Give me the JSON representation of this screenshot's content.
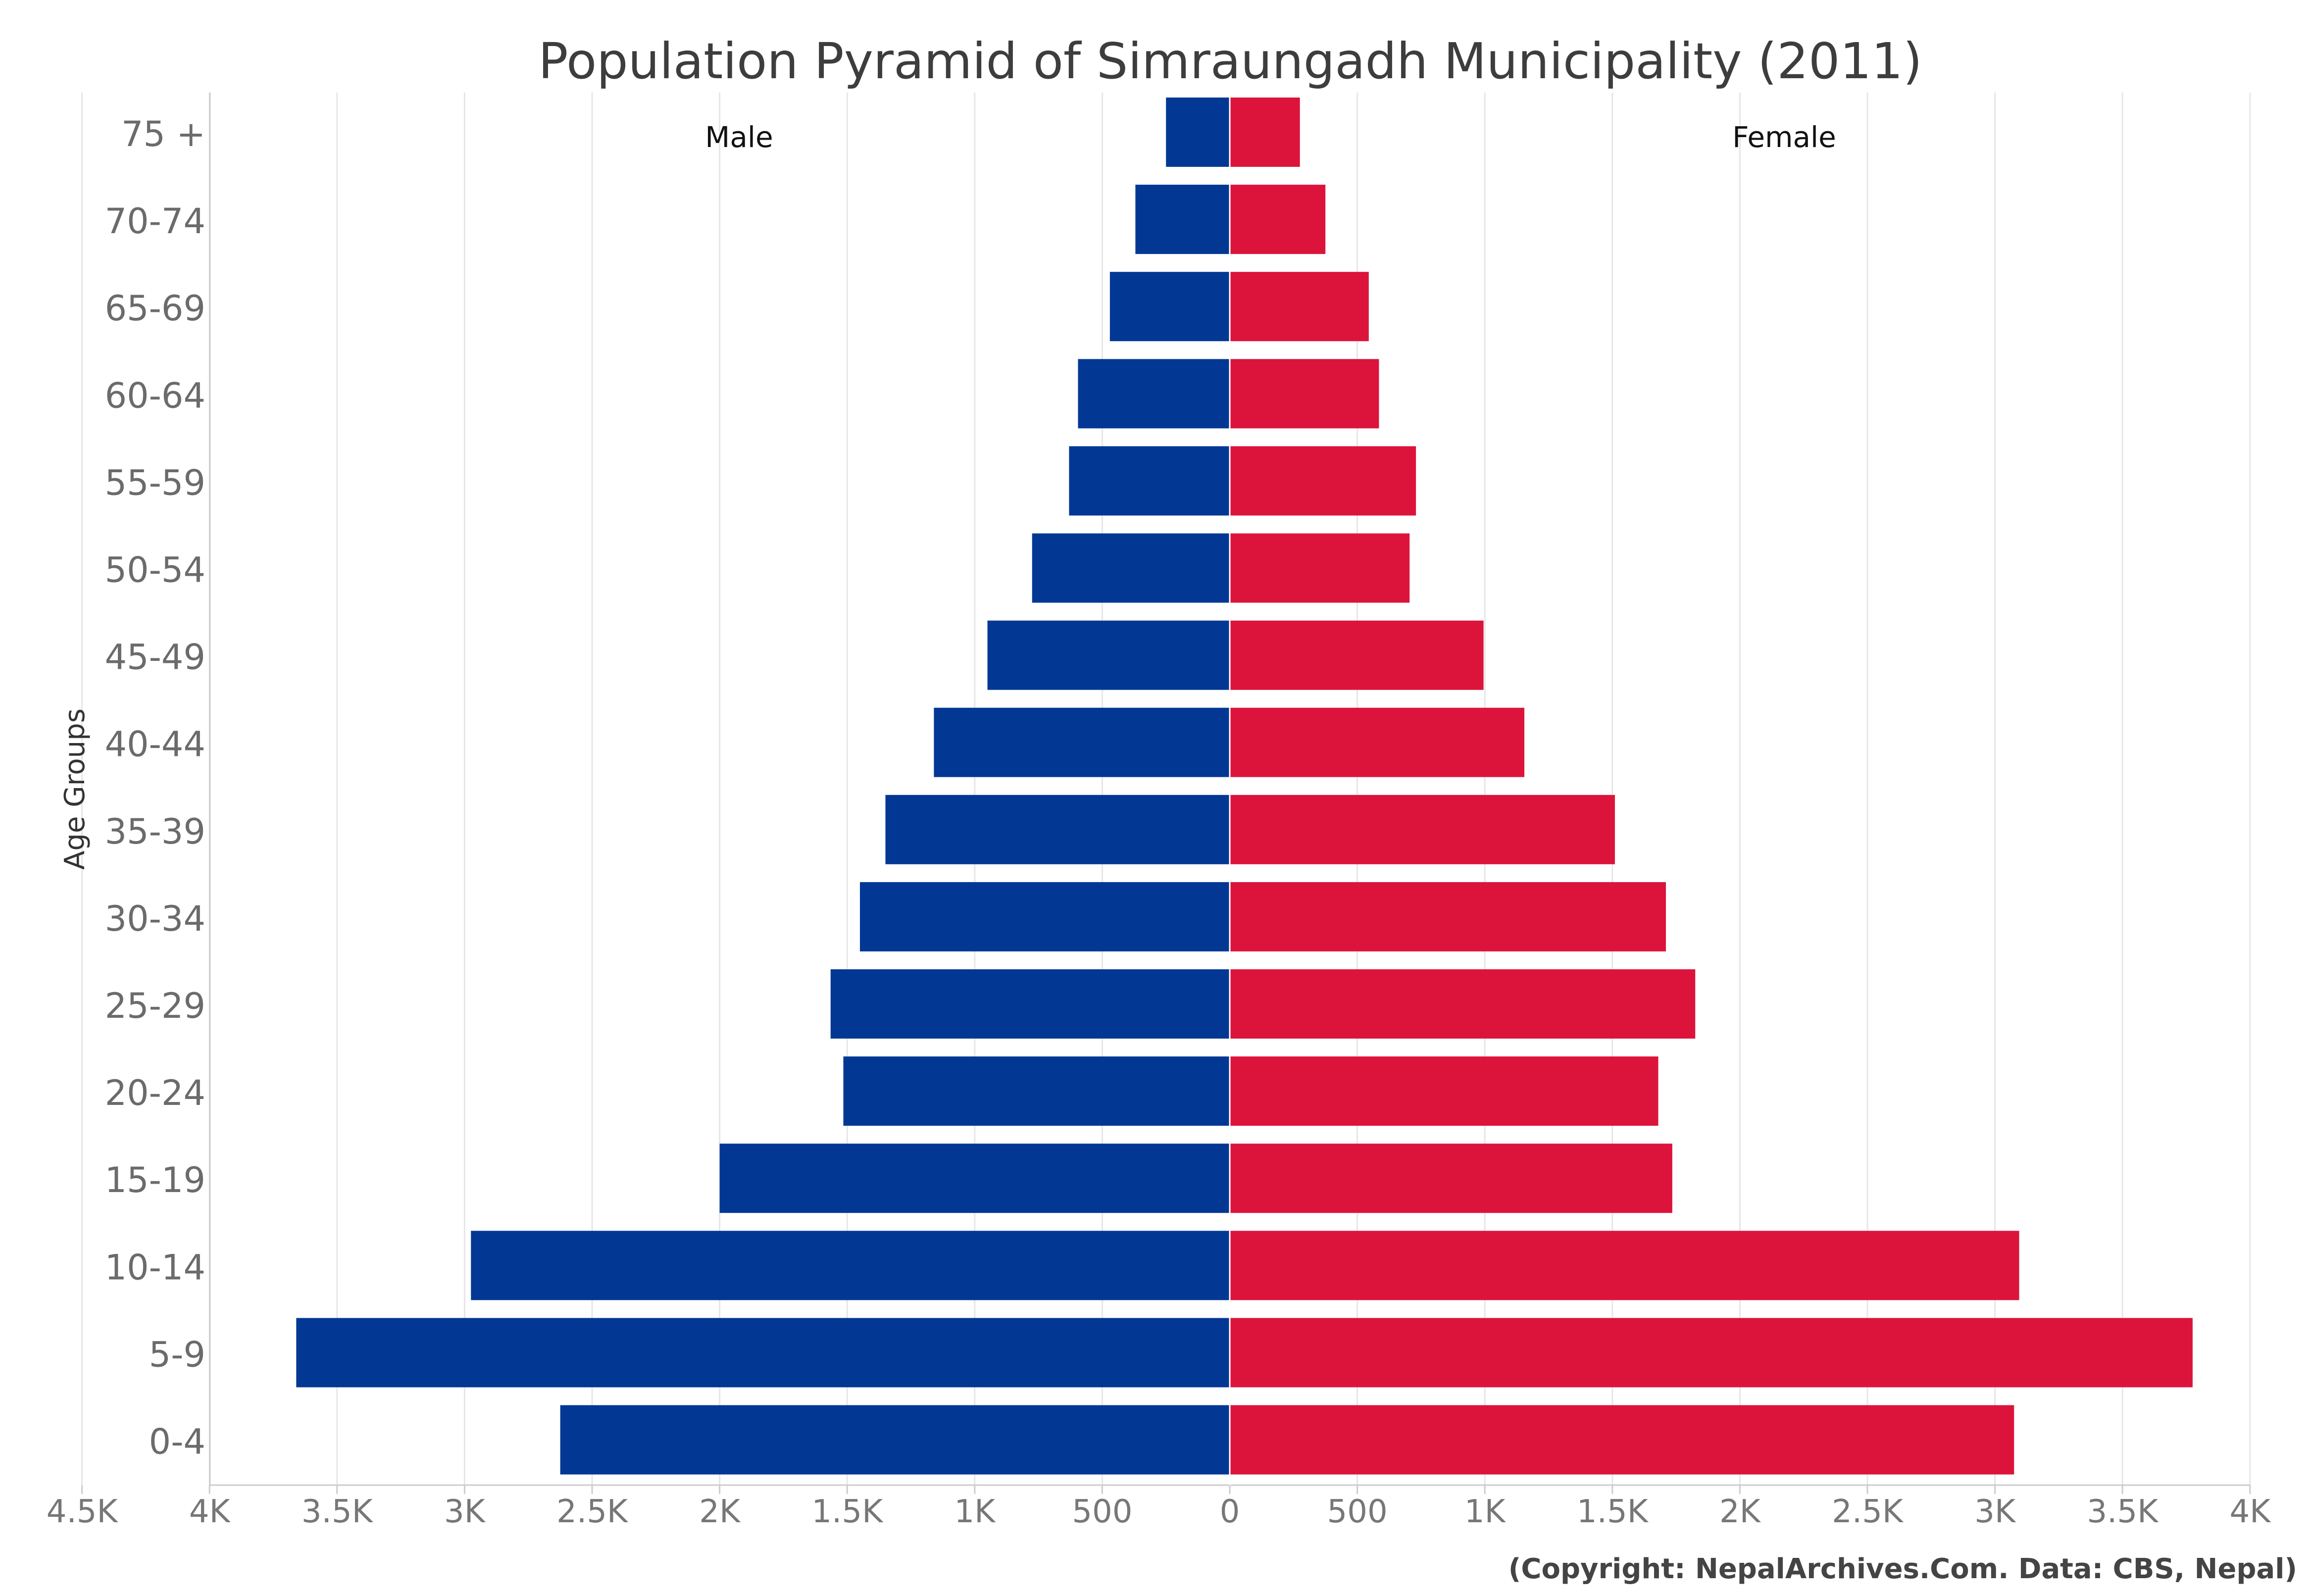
{
  "chart_data": {
    "type": "bar",
    "orientation": "horizontal-diverging",
    "title": "Population Pyramid of Simraungadh Municipality (2011)",
    "ylabel": "Age Groups",
    "xlabel": "",
    "categories": [
      "75 +",
      "70-74",
      "65-69",
      "60-64",
      "55-59",
      "50-54",
      "45-49",
      "40-44",
      "35-39",
      "30-34",
      "25-29",
      "20-24",
      "15-19",
      "10-14",
      "5-9",
      "0-4"
    ],
    "series": [
      {
        "name": "Male",
        "color": "#023894",
        "side": "left",
        "values": [
          250,
          370,
          470,
          595,
          630,
          775,
          950,
          1160,
          1350,
          1450,
          1565,
          1515,
          2000,
          2975,
          3660,
          2625
        ]
      },
      {
        "name": "Female",
        "color": "#dc143c",
        "side": "right",
        "values": [
          275,
          375,
          545,
          585,
          730,
          705,
          995,
          1155,
          1510,
          1710,
          1825,
          1680,
          1735,
          3095,
          3775,
          3075
        ]
      }
    ],
    "xlim": [
      -4000,
      4000
    ],
    "x_tick_labels": [
      "4.5K",
      "4K",
      "3.5K",
      "3K",
      "2.5K",
      "2K",
      "1.5K",
      "1K",
      "500",
      "0",
      "500",
      "1K",
      "1.5K",
      "2K",
      "2.5K",
      "3K",
      "3.5K",
      "4K"
    ],
    "grid": true,
    "credits": "(Copyright: NepalArchives.Com. Data: CBS, Nepal)"
  }
}
